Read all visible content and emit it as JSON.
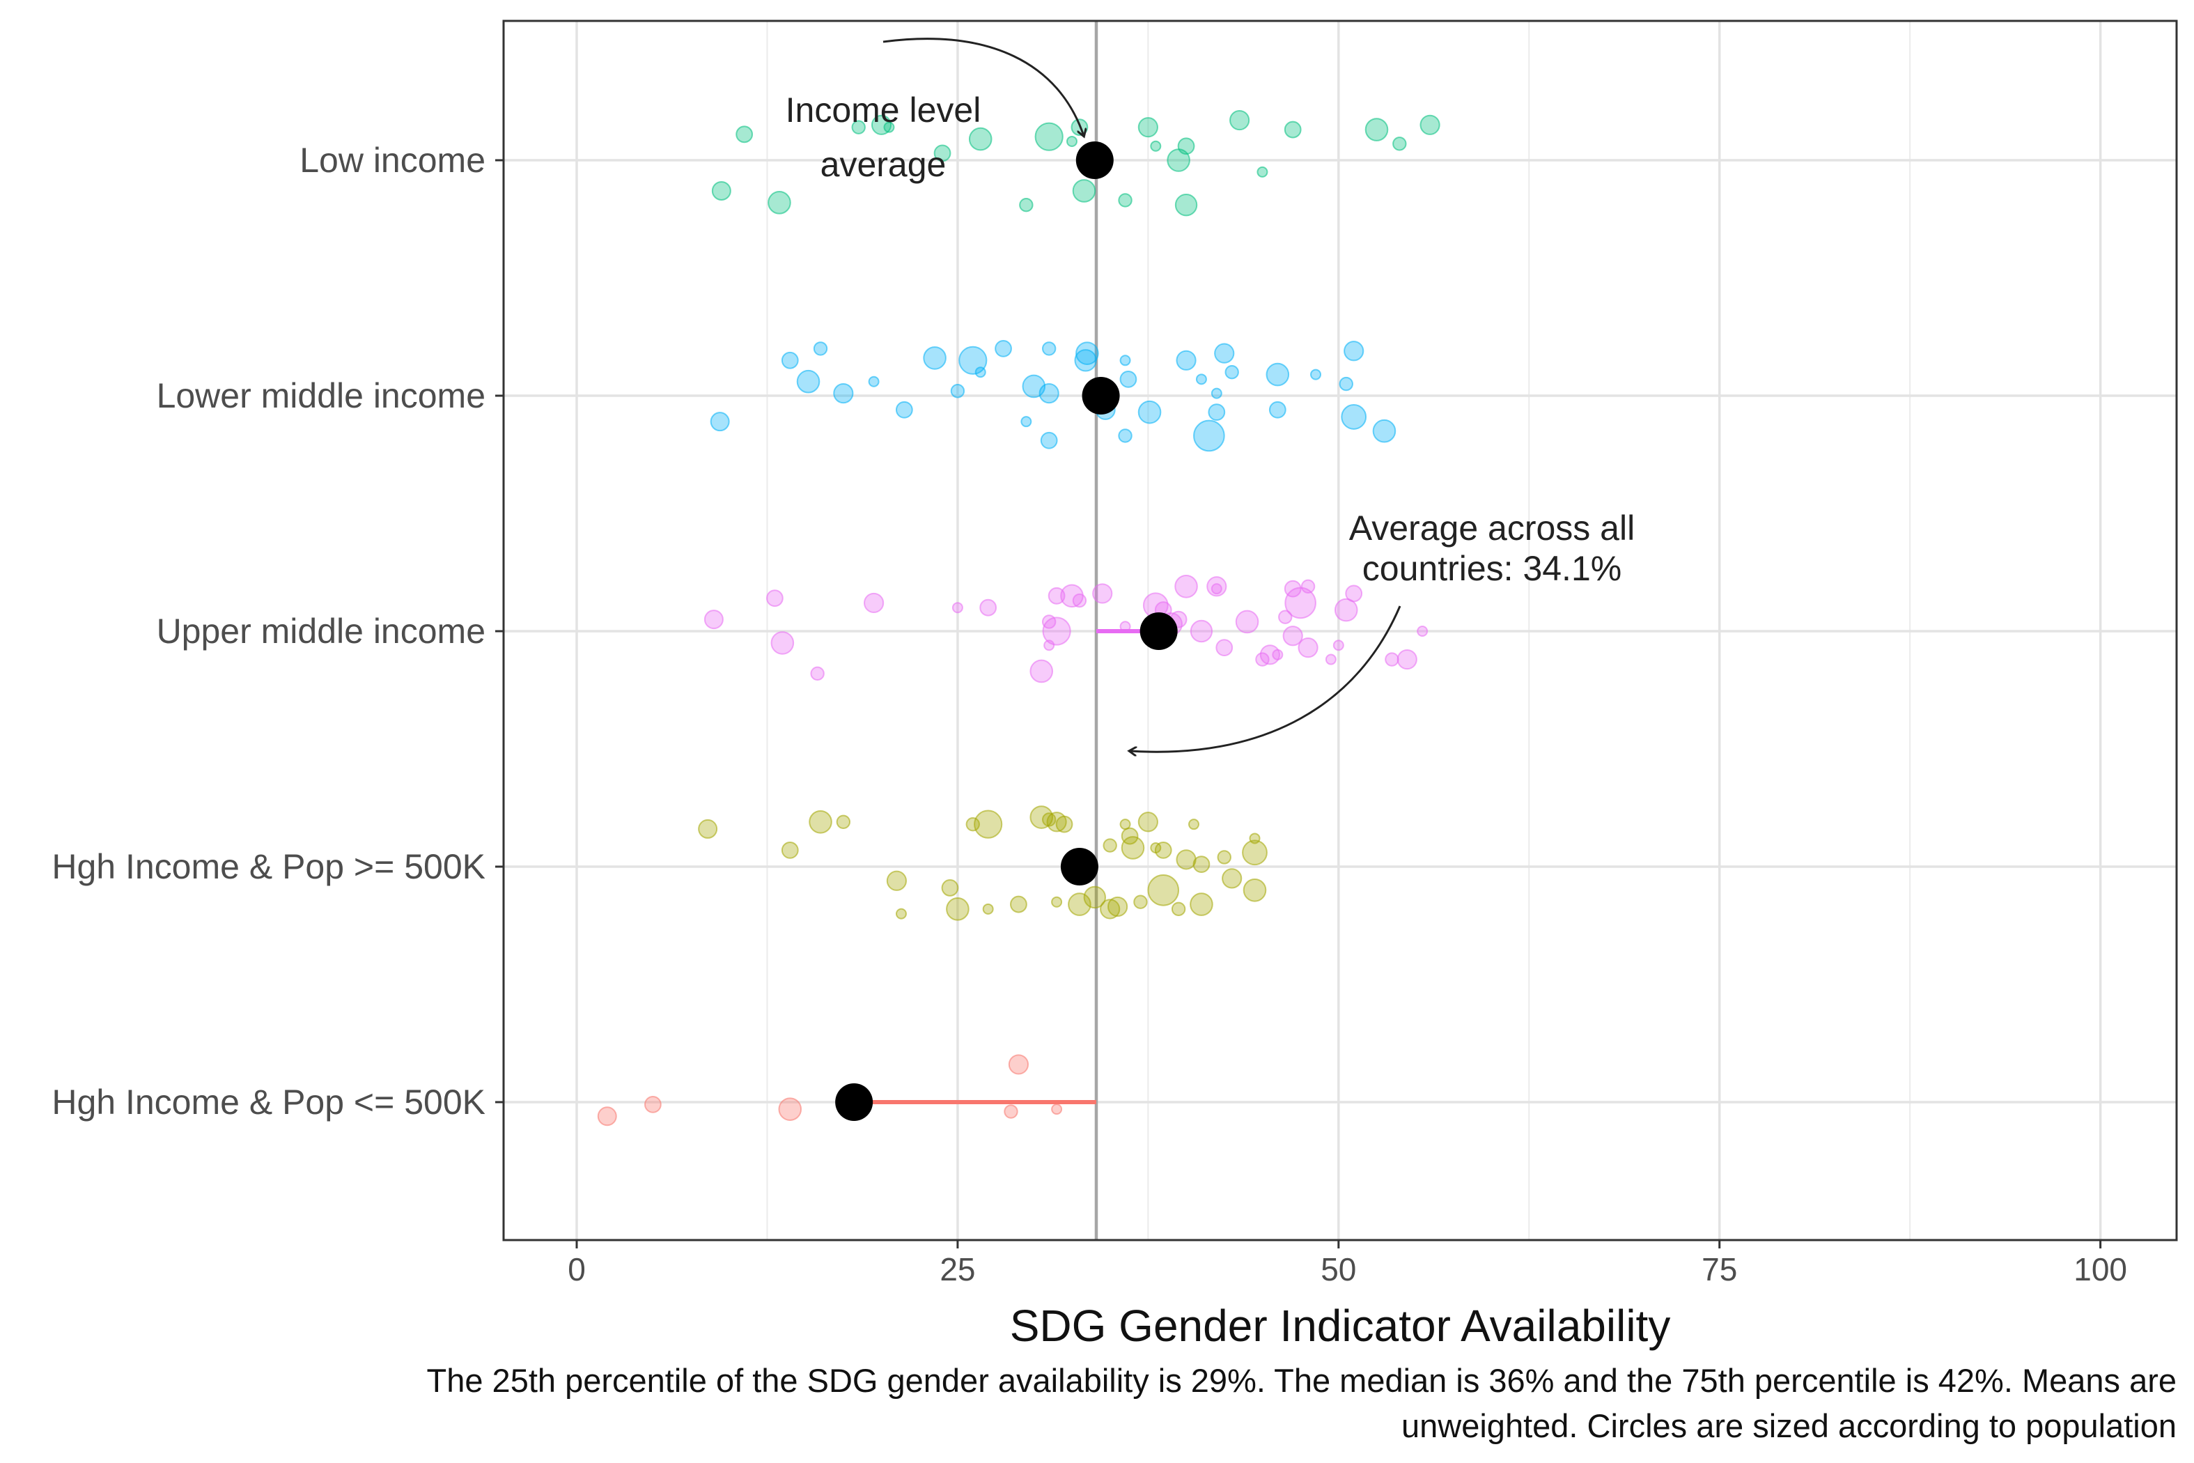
{
  "chart_data": {
    "type": "scatter",
    "xlabel": "SDG Gender Indicator Availability",
    "ylabel": "",
    "xlim": [
      -4.8,
      105
    ],
    "x_ticks": [
      0,
      25,
      50,
      75,
      100
    ],
    "grid": true,
    "legend": "none",
    "categories": [
      "Low income",
      "Lower middle income",
      "Upper middle income",
      "Hgh Income & Pop >= 500K",
      "Hgh Income & Pop <= 500K"
    ],
    "overall_average": 34.1,
    "series": [
      {
        "category": "Low income",
        "color": "#00BF7D",
        "mean": 34.0,
        "points": [
          {
            "x": 9.5,
            "y": -0.13
          },
          {
            "x": 11,
            "y": 0.11
          },
          {
            "x": 13.3,
            "y": -0.18
          },
          {
            "x": 18.5,
            "y": 0.14
          },
          {
            "x": 20,
            "y": 0.15
          },
          {
            "x": 20.5,
            "y": 0.14
          },
          {
            "x": 24,
            "y": 0.03
          },
          {
            "x": 26.5,
            "y": 0.09
          },
          {
            "x": 29.5,
            "y": -0.19
          },
          {
            "x": 31,
            "y": 0.1
          },
          {
            "x": 32.5,
            "y": 0.08
          },
          {
            "x": 33,
            "y": 0.14
          },
          {
            "x": 33.3,
            "y": -0.13
          },
          {
            "x": 36,
            "y": -0.17
          },
          {
            "x": 37.5,
            "y": 0.14
          },
          {
            "x": 38,
            "y": 0.06
          },
          {
            "x": 40,
            "y": 0.06
          },
          {
            "x": 39.5,
            "y": 0.0
          },
          {
            "x": 40,
            "y": -0.19
          },
          {
            "x": 43.5,
            "y": 0.17
          },
          {
            "x": 45,
            "y": -0.05
          },
          {
            "x": 47,
            "y": 0.13
          },
          {
            "x": 52.5,
            "y": 0.13
          },
          {
            "x": 54,
            "y": 0.07
          },
          {
            "x": 56,
            "y": 0.15
          }
        ]
      },
      {
        "category": "Lower middle income",
        "color": "#00B0F6",
        "mean": 34.4,
        "points": [
          {
            "x": 9.4,
            "y": -0.11
          },
          {
            "x": 14,
            "y": 0.15
          },
          {
            "x": 15.2,
            "y": 0.06
          },
          {
            "x": 16,
            "y": 0.2
          },
          {
            "x": 17.5,
            "y": 0.01
          },
          {
            "x": 19.5,
            "y": 0.06
          },
          {
            "x": 21.5,
            "y": -0.06
          },
          {
            "x": 23.5,
            "y": 0.16
          },
          {
            "x": 25,
            "y": 0.02
          },
          {
            "x": 26,
            "y": 0.15
          },
          {
            "x": 26.5,
            "y": 0.1
          },
          {
            "x": 28,
            "y": 0.2
          },
          {
            "x": 30,
            "y": 0.04
          },
          {
            "x": 31,
            "y": 0.2
          },
          {
            "x": 31,
            "y": 0.01
          },
          {
            "x": 29.5,
            "y": -0.11
          },
          {
            "x": 31,
            "y": -0.19
          },
          {
            "x": 33.5,
            "y": 0.18
          },
          {
            "x": 33.4,
            "y": 0.15
          },
          {
            "x": 34.7,
            "y": -0.06
          },
          {
            "x": 36,
            "y": 0.15
          },
          {
            "x": 36.2,
            "y": 0.07
          },
          {
            "x": 37.6,
            "y": -0.07
          },
          {
            "x": 36,
            "y": -0.17
          },
          {
            "x": 40,
            "y": 0.15
          },
          {
            "x": 41,
            "y": 0.07
          },
          {
            "x": 42,
            "y": -0.07
          },
          {
            "x": 41.5,
            "y": -0.17
          },
          {
            "x": 43,
            "y": 0.1
          },
          {
            "x": 42.5,
            "y": 0.18
          },
          {
            "x": 42,
            "y": 0.01
          },
          {
            "x": 46,
            "y": -0.06
          },
          {
            "x": 46,
            "y": 0.09
          },
          {
            "x": 50.5,
            "y": 0.05
          },
          {
            "x": 51,
            "y": 0.19
          },
          {
            "x": 48.5,
            "y": 0.09
          },
          {
            "x": 51,
            "y": -0.09
          },
          {
            "x": 53,
            "y": -0.15
          }
        ]
      },
      {
        "category": "Upper middle income",
        "color": "#E76BF3",
        "mean": 38.2,
        "points": [
          {
            "x": 9,
            "y": 0.05
          },
          {
            "x": 13,
            "y": 0.14
          },
          {
            "x": 13.5,
            "y": -0.05
          },
          {
            "x": 15.8,
            "y": -0.18
          },
          {
            "x": 19.5,
            "y": 0.12
          },
          {
            "x": 25,
            "y": 0.1
          },
          {
            "x": 27,
            "y": 0.1
          },
          {
            "x": 30.5,
            "y": -0.17
          },
          {
            "x": 31,
            "y": 0.04
          },
          {
            "x": 31.5,
            "y": 0.0
          },
          {
            "x": 31,
            "y": -0.06
          },
          {
            "x": 31.5,
            "y": 0.15
          },
          {
            "x": 32.5,
            "y": 0.15
          },
          {
            "x": 33,
            "y": 0.13
          },
          {
            "x": 34.5,
            "y": 0.16
          },
          {
            "x": 36,
            "y": 0.02
          },
          {
            "x": 39.5,
            "y": 0.05
          },
          {
            "x": 40,
            "y": 0.19
          },
          {
            "x": 41,
            "y": 0.0
          },
          {
            "x": 42,
            "y": 0.19
          },
          {
            "x": 42,
            "y": 0.18
          },
          {
            "x": 42.5,
            "y": -0.07
          },
          {
            "x": 44,
            "y": 0.04
          },
          {
            "x": 45,
            "y": -0.12
          },
          {
            "x": 45.5,
            "y": -0.1
          },
          {
            "x": 46,
            "y": -0.1
          },
          {
            "x": 47,
            "y": 0.18
          },
          {
            "x": 47.5,
            "y": 0.12
          },
          {
            "x": 48,
            "y": 0.19
          },
          {
            "x": 48,
            "y": -0.07
          },
          {
            "x": 49.5,
            "y": -0.12
          },
          {
            "x": 51,
            "y": 0.16
          },
          {
            "x": 50.5,
            "y": 0.09
          },
          {
            "x": 53.5,
            "y": -0.12
          },
          {
            "x": 54.5,
            "y": -0.12
          },
          {
            "x": 55.5,
            "y": 0.0
          },
          {
            "x": 38,
            "y": 0.11
          },
          {
            "x": 39,
            "y": 0.03
          },
          {
            "x": 46.5,
            "y": 0.06
          },
          {
            "x": 47,
            "y": -0.02
          },
          {
            "x": 50,
            "y": -0.06
          },
          {
            "x": 38.5,
            "y": 0.09
          }
        ]
      },
      {
        "category": "Hgh Income & Pop >= 500K",
        "color": "#A3A500",
        "mean": 33.0,
        "points": [
          {
            "x": 8.6,
            "y": 0.16
          },
          {
            "x": 14,
            "y": 0.07
          },
          {
            "x": 16,
            "y": 0.19
          },
          {
            "x": 17.5,
            "y": 0.19
          },
          {
            "x": 21,
            "y": -0.06
          },
          {
            "x": 21.3,
            "y": -0.2
          },
          {
            "x": 24.5,
            "y": -0.09
          },
          {
            "x": 25,
            "y": -0.18
          },
          {
            "x": 26,
            "y": 0.18
          },
          {
            "x": 27,
            "y": 0.18
          },
          {
            "x": 27,
            "y": -0.18
          },
          {
            "x": 29,
            "y": -0.16
          },
          {
            "x": 30.5,
            "y": 0.21
          },
          {
            "x": 31,
            "y": 0.2
          },
          {
            "x": 31.5,
            "y": 0.19
          },
          {
            "x": 31.5,
            "y": -0.15
          },
          {
            "x": 32,
            "y": 0.18
          },
          {
            "x": 33,
            "y": -0.16
          },
          {
            "x": 34,
            "y": -0.13
          },
          {
            "x": 35,
            "y": -0.18
          },
          {
            "x": 36,
            "y": 0.18
          },
          {
            "x": 36.3,
            "y": 0.13
          },
          {
            "x": 36.5,
            "y": 0.08
          },
          {
            "x": 37,
            "y": -0.15
          },
          {
            "x": 37.5,
            "y": 0.19
          },
          {
            "x": 38,
            "y": 0.08
          },
          {
            "x": 38.5,
            "y": 0.07
          },
          {
            "x": 38.5,
            "y": -0.1
          },
          {
            "x": 39.5,
            "y": -0.18
          },
          {
            "x": 40,
            "y": 0.03
          },
          {
            "x": 40.5,
            "y": 0.18
          },
          {
            "x": 41,
            "y": 0.01
          },
          {
            "x": 41,
            "y": -0.16
          },
          {
            "x": 42.5,
            "y": 0.04
          },
          {
            "x": 43,
            "y": -0.05
          },
          {
            "x": 44.5,
            "y": 0.12
          },
          {
            "x": 44.5,
            "y": 0.06
          },
          {
            "x": 44.5,
            "y": -0.1
          },
          {
            "x": 35,
            "y": 0.09
          },
          {
            "x": 35.5,
            "y": -0.17
          }
        ]
      },
      {
        "category": "Hgh Income & Pop <= 500K",
        "color": "#F8766D",
        "mean": 18.2,
        "points": [
          {
            "x": 2,
            "y": -0.06
          },
          {
            "x": 5,
            "y": -0.01
          },
          {
            "x": 14,
            "y": -0.03
          },
          {
            "x": 28.5,
            "y": -0.04
          },
          {
            "x": 29,
            "y": 0.16
          },
          {
            "x": 31.5,
            "y": -0.03
          }
        ]
      }
    ],
    "annotations": [
      {
        "text_lines": [
          "Income level",
          "average"
        ]
      },
      {
        "text_lines": [
          "Average across all",
          "countries: 34.1%"
        ]
      }
    ],
    "caption": [
      "The 25th percentile of the SDG gender availability is 29%. The median is 36% and the 75th percentile is 42%. Means are",
      "unweighted. Circles are sized according to population"
    ]
  }
}
